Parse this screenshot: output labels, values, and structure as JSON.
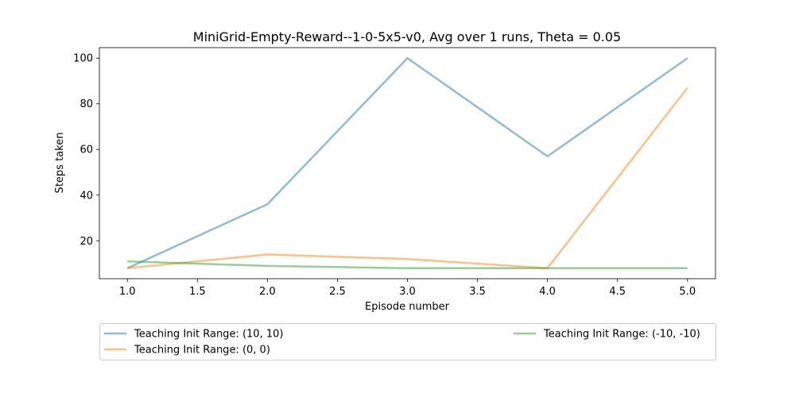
{
  "chart_data": {
    "type": "line",
    "title": "MiniGrid-Empty-Reward--1-0-5x5-v0, Avg over 1 runs, Theta = 0.05",
    "xlabel": "Episode number",
    "ylabel": "Steps taken",
    "x": [
      1,
      2,
      3,
      4,
      5
    ],
    "xlim": [
      0.8,
      5.2
    ],
    "ylim": [
      3.4,
      104.6
    ],
    "xticks": [
      "1.0",
      "1.5",
      "2.0",
      "2.5",
      "3.0",
      "3.5",
      "4.0",
      "4.5",
      "5.0"
    ],
    "yticks": [
      "20",
      "40",
      "60",
      "80",
      "100"
    ],
    "grid": false,
    "legend_position": "below plot",
    "series": [
      {
        "name": "Teaching Init Range: (10, 10)",
        "values": [
          8,
          36,
          100,
          57,
          100
        ],
        "color": "#1f77b4"
      },
      {
        "name": "Teaching Init Range: (0, 0)",
        "values": [
          8,
          14,
          12,
          8,
          87
        ],
        "color": "#ff7f0e"
      },
      {
        "name": "Teaching Init Range: (-10, -10)",
        "values": [
          11,
          9,
          8,
          8,
          8
        ],
        "color": "#2ca02c"
      }
    ]
  }
}
